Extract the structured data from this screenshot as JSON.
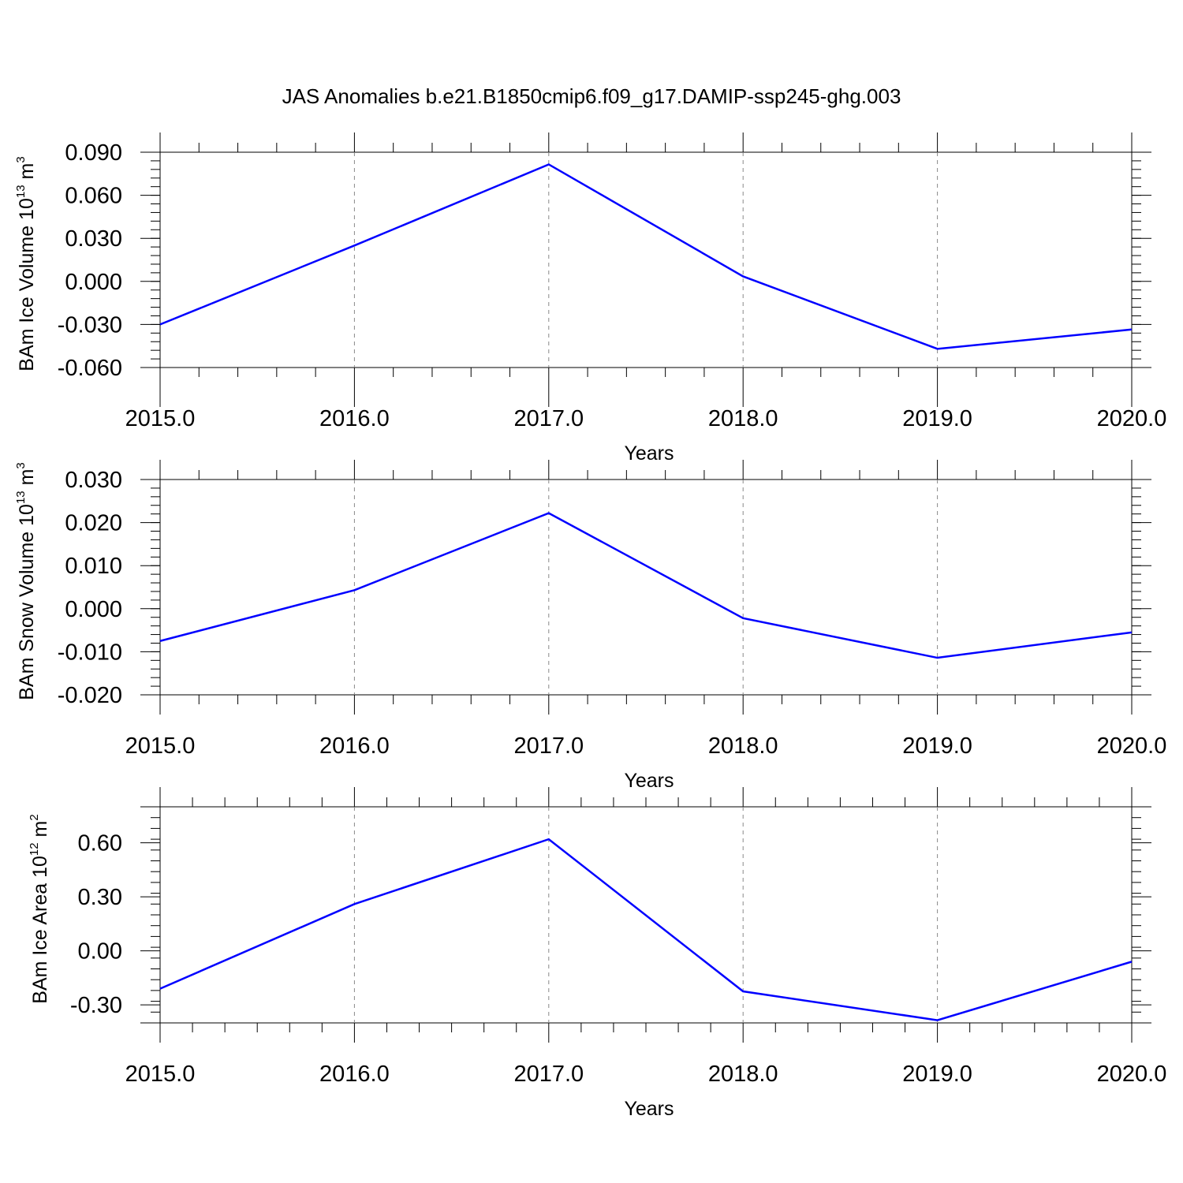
{
  "title": "JAS Anomalies b.e21.B1850cmip6.f09_g17.DAMIP-ssp245-ghg.003",
  "line_color": "#0000ff",
  "chart_data": [
    {
      "type": "line",
      "title": "",
      "xlabel": "Years",
      "ylabel": {
        "main": "BAm Ice Volume 10",
        "sup1": "13",
        "mid": " m",
        "sup2": "3"
      },
      "x": [
        2015,
        2016,
        2017,
        2018,
        2019,
        2020
      ],
      "xlim": [
        2015,
        2020
      ],
      "ylim": [
        -0.06,
        0.09
      ],
      "xticks": [
        2015,
        2016,
        2017,
        2018,
        2019,
        2020
      ],
      "xtick_labels": [
        "2015.0",
        "2016.0",
        "2017.0",
        "2018.0",
        "2019.0",
        "2020.0"
      ],
      "yticks": [
        -0.06,
        -0.03,
        0.0,
        0.03,
        0.06,
        0.09
      ],
      "ytick_labels": [
        "-0.060",
        "-0.030",
        "0.000",
        "0.030",
        "0.060",
        "0.090"
      ],
      "grid": "vertical dashed",
      "series": [
        {
          "values": [
            -0.03,
            0.025,
            0.0815,
            0.0035,
            -0.047,
            -0.0335
          ]
        }
      ]
    },
    {
      "type": "line",
      "title": "",
      "xlabel": "Years",
      "ylabel": {
        "main": "BAm Snow Volume 10",
        "sup1": "13",
        "mid": " m",
        "sup2": "3"
      },
      "x": [
        2015,
        2016,
        2017,
        2018,
        2019,
        2020
      ],
      "xlim": [
        2015,
        2020
      ],
      "ylim": [
        -0.02,
        0.03
      ],
      "xticks": [
        2015,
        2016,
        2017,
        2018,
        2019,
        2020
      ],
      "xtick_labels": [
        "2015.0",
        "2016.0",
        "2017.0",
        "2018.0",
        "2019.0",
        "2020.0"
      ],
      "yticks": [
        -0.02,
        -0.01,
        0.0,
        0.01,
        0.02,
        0.03
      ],
      "ytick_labels": [
        "-0.020",
        "-0.010",
        "0.000",
        "0.010",
        "0.020",
        "0.030"
      ],
      "grid": "vertical dashed",
      "series": [
        {
          "values": [
            -0.0075,
            0.0043,
            0.0222,
            -0.0022,
            -0.0114,
            -0.0055
          ]
        }
      ]
    },
    {
      "type": "line",
      "title": "",
      "xlabel": "Years",
      "ylabel": {
        "main": "BAm Ice Area 10",
        "sup1": "12",
        "mid": " m",
        "sup2": "2"
      },
      "x": [
        2015,
        2016,
        2017,
        2018,
        2019,
        2020
      ],
      "xlim": [
        2015,
        2020
      ],
      "ylim": [
        -0.4,
        0.8
      ],
      "xticks": [
        2015,
        2016,
        2017,
        2018,
        2019,
        2020
      ],
      "xtick_labels": [
        "2015.0",
        "2016.0",
        "2017.0",
        "2018.0",
        "2019.0",
        "2020.0"
      ],
      "yticks": [
        -0.3,
        0.0,
        0.3,
        0.6
      ],
      "ytick_labels": [
        "-0.30",
        "0.00",
        "0.30",
        "0.60"
      ],
      "grid": "vertical dashed",
      "series": [
        {
          "values": [
            -0.21,
            0.26,
            0.62,
            -0.225,
            -0.385,
            -0.06
          ]
        }
      ]
    }
  ]
}
